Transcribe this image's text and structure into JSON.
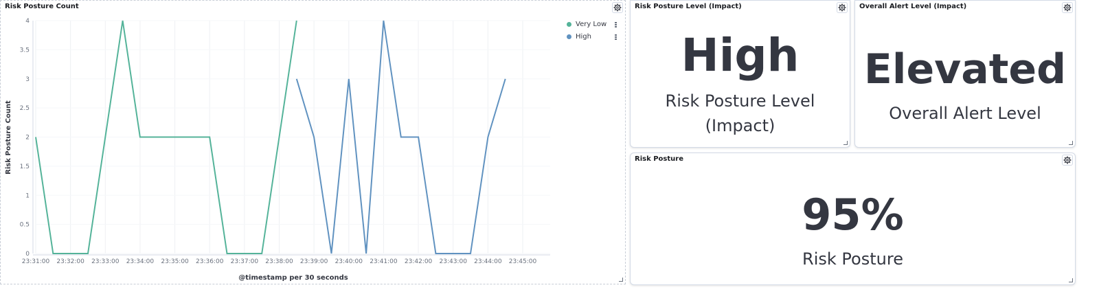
{
  "chart_panel": {
    "title": "Risk Posture Count",
    "legend": [
      {
        "label": "Very Low",
        "color": "#54b399"
      },
      {
        "label": "High",
        "color": "#6092c0"
      }
    ]
  },
  "chart_data": {
    "type": "line",
    "title": "Risk Posture Count",
    "xlabel": "@timestamp per 30 seconds",
    "ylabel": "Risk Posture Count",
    "ylim": [
      0,
      4
    ],
    "y_ticks": [
      "0",
      "0.5",
      "1",
      "1.5",
      "2",
      "2.5",
      "3",
      "3.5",
      "4"
    ],
    "x_ticks": [
      "23:31:00",
      "23:32:00",
      "23:33:00",
      "23:34:00",
      "23:35:00",
      "23:36:00",
      "23:37:00",
      "23:38:00",
      "23:39:00",
      "23:40:00",
      "23:41:00",
      "23:42:00",
      "23:43:00",
      "23:44:00",
      "23:45:00"
    ],
    "grid": true,
    "legend_position": "top-right",
    "series": [
      {
        "name": "Very Low",
        "color": "#54b399",
        "x": [
          "23:31:00",
          "23:31:30",
          "23:32:00",
          "23:32:30",
          "23:33:00",
          "23:33:30",
          "23:34:00",
          "23:34:30",
          "23:35:00",
          "23:35:30",
          "23:36:00",
          "23:36:30",
          "23:37:00",
          "23:37:30",
          "23:38:00",
          "23:38:30"
        ],
        "values": [
          2,
          0,
          0,
          0,
          2,
          4,
          2,
          2,
          2,
          2,
          2,
          0,
          0,
          0,
          2,
          4
        ]
      },
      {
        "name": "High",
        "color": "#6092c0",
        "x": [
          "23:38:30",
          "23:39:00",
          "23:39:30",
          "23:40:00",
          "23:40:30",
          "23:41:00",
          "23:41:30",
          "23:42:00",
          "23:42:30",
          "23:43:00",
          "23:43:30",
          "23:44:00",
          "23:44:30"
        ],
        "values": [
          3,
          2,
          0,
          3,
          0,
          4,
          2,
          2,
          0,
          0,
          0,
          2,
          3
        ]
      }
    ]
  },
  "panels": {
    "risk_level": {
      "title": "Risk Posture Level (Impact)",
      "value": "High",
      "label_line1": "Risk Posture Level",
      "label_line2": "(Impact)"
    },
    "alert_level": {
      "title": "Overall Alert Level (Impact)",
      "value": "Elevated",
      "label": "Overall Alert Level"
    },
    "risk_posture": {
      "title": "Risk Posture",
      "value": "95%",
      "label": "Risk Posture"
    }
  }
}
